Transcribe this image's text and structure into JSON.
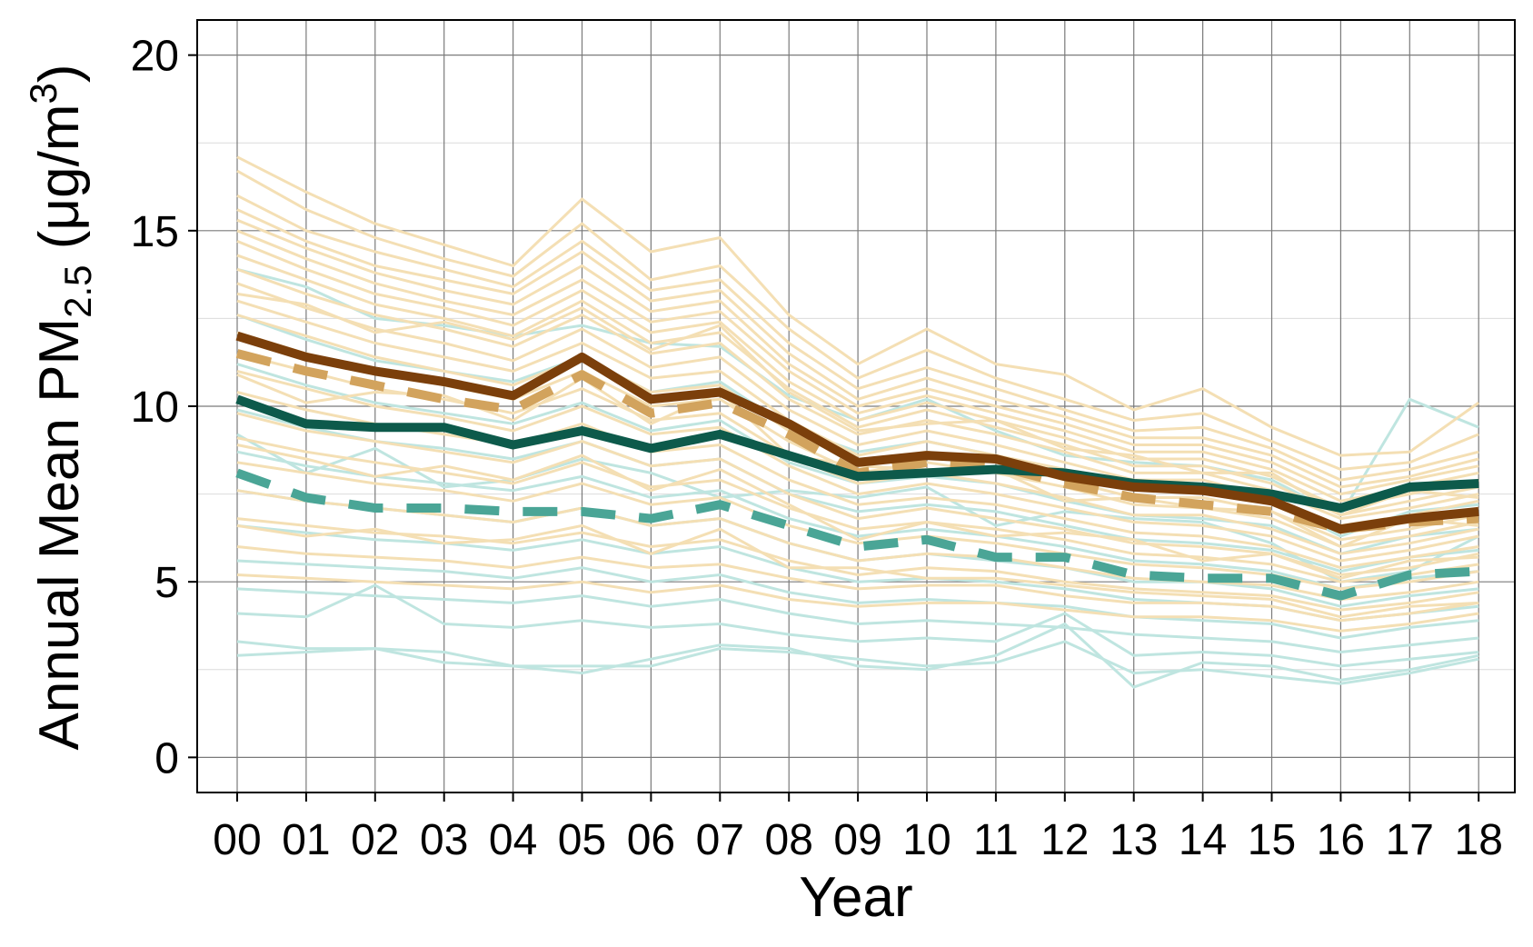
{
  "chart_data": {
    "type": "line",
    "xlabel": "Year",
    "ylabel": {
      "prefix": "Annual Mean PM",
      "subscript": "2.5",
      "unit_open": " (μg/m",
      "superscript": "3",
      "unit_close": ")"
    },
    "categories": [
      "00",
      "01",
      "02",
      "03",
      "04",
      "05",
      "06",
      "07",
      "08",
      "09",
      "10",
      "11",
      "12",
      "13",
      "14",
      "15",
      "16",
      "17",
      "18"
    ],
    "ylim": [
      -1,
      21
    ],
    "yticks": [
      0,
      5,
      10,
      15,
      20
    ],
    "grid": true,
    "legend": "none",
    "colors": {
      "brown_solid": "#7b3f0b",
      "tan_dashed": "#d2a35d",
      "teal_solid": "#0d5a4b",
      "teal_dashed": "#4aa596",
      "thin_tan": "#f4dfb4",
      "thin_cyan": "#bfe5e0"
    },
    "series": [
      {
        "style": "brown_solid",
        "values": [
          12.0,
          11.4,
          11.0,
          10.7,
          10.3,
          11.4,
          10.2,
          10.4,
          9.5,
          8.4,
          8.6,
          8.5,
          8.0,
          7.7,
          7.6,
          7.3,
          6.5,
          6.8,
          7.0
        ]
      },
      {
        "style": "tan_dashed",
        "values": [
          11.5,
          11.0,
          10.6,
          10.2,
          9.9,
          10.9,
          9.8,
          10.1,
          9.2,
          8.1,
          8.4,
          8.3,
          7.8,
          7.4,
          7.2,
          7.0,
          6.5,
          6.7,
          6.8
        ]
      },
      {
        "style": "teal_solid",
        "values": [
          10.2,
          9.5,
          9.4,
          9.4,
          8.9,
          9.3,
          8.8,
          9.2,
          8.6,
          8.0,
          8.1,
          8.2,
          8.1,
          7.8,
          7.7,
          7.5,
          7.1,
          7.7,
          7.8
        ]
      },
      {
        "style": "teal_dashed",
        "values": [
          8.1,
          7.4,
          7.1,
          7.1,
          7.0,
          7.0,
          6.8,
          7.2,
          6.6,
          6.0,
          6.2,
          5.7,
          5.7,
          5.2,
          5.1,
          5.1,
          4.6,
          5.2,
          5.3
        ]
      }
    ],
    "background_series": {
      "tan": [
        [
          17.1,
          16.1,
          15.2,
          14.6,
          14.0,
          15.9,
          14.4,
          14.8,
          12.6,
          11.2,
          12.2,
          11.2,
          10.9,
          9.9,
          10.5,
          9.4,
          8.6,
          8.7,
          10.1
        ],
        [
          16.7,
          15.6,
          14.8,
          14.2,
          13.7,
          15.2,
          13.6,
          14.0,
          12.2,
          10.8,
          11.6,
          10.8,
          10.2,
          9.6,
          9.8,
          9.0,
          8.2,
          8.4,
          9.2
        ],
        [
          16.0,
          15.0,
          14.4,
          13.9,
          13.4,
          14.7,
          13.3,
          13.6,
          11.8,
          10.5,
          11.1,
          10.5,
          9.9,
          9.3,
          9.4,
          8.8,
          7.9,
          8.2,
          8.7
        ],
        [
          15.6,
          14.7,
          14.0,
          13.6,
          13.2,
          14.4,
          13.0,
          13.3,
          11.5,
          10.2,
          10.8,
          10.2,
          9.7,
          9.1,
          9.1,
          8.6,
          7.7,
          8.0,
          8.5
        ],
        [
          15.3,
          14.5,
          13.8,
          13.3,
          12.9,
          14.0,
          12.7,
          13.0,
          11.2,
          10.0,
          10.5,
          10.0,
          9.5,
          8.9,
          8.9,
          8.4,
          7.5,
          7.9,
          8.3
        ],
        [
          15.0,
          14.2,
          13.5,
          13.0,
          12.6,
          13.6,
          12.4,
          12.7,
          11.0,
          9.8,
          10.3,
          9.8,
          9.3,
          8.7,
          8.7,
          8.2,
          7.3,
          7.7,
          8.1
        ],
        [
          14.7,
          13.9,
          13.2,
          12.8,
          12.3,
          13.3,
          12.1,
          12.4,
          10.7,
          9.6,
          10.1,
          9.6,
          9.1,
          8.5,
          8.5,
          8.0,
          7.1,
          7.5,
          7.9
        ],
        [
          14.3,
          13.6,
          12.9,
          12.5,
          12.0,
          13.0,
          11.8,
          12.1,
          10.5,
          9.4,
          9.9,
          9.4,
          8.9,
          8.3,
          8.3,
          7.8,
          6.9,
          7.3,
          7.7
        ],
        [
          13.9,
          13.2,
          12.6,
          12.2,
          11.7,
          12.6,
          11.5,
          11.8,
          10.2,
          9.2,
          9.6,
          9.2,
          8.7,
          8.1,
          8.1,
          7.6,
          6.8,
          7.1,
          7.5
        ],
        [
          13.5,
          12.8,
          12.2,
          11.8,
          11.3,
          12.2,
          11.1,
          11.4,
          9.9,
          8.9,
          9.3,
          8.9,
          8.4,
          7.9,
          7.9,
          7.4,
          6.6,
          6.9,
          7.3
        ],
        [
          13.0,
          12.4,
          11.8,
          11.4,
          11.0,
          11.8,
          10.8,
          11.0,
          9.6,
          8.6,
          9.0,
          8.6,
          8.2,
          7.7,
          7.6,
          7.2,
          6.4,
          6.7,
          7.1
        ],
        [
          12.6,
          12.0,
          11.4,
          11.0,
          10.6,
          11.4,
          10.4,
          10.6,
          9.3,
          8.4,
          8.7,
          8.4,
          7.9,
          7.4,
          7.4,
          7.0,
          6.2,
          6.5,
          6.9
        ],
        [
          12.1,
          11.5,
          11.0,
          10.6,
          10.2,
          11.0,
          10.0,
          10.2,
          9.0,
          8.1,
          8.4,
          8.1,
          7.7,
          7.2,
          7.1,
          6.8,
          6.0,
          6.3,
          6.7
        ],
        [
          11.5,
          11.0,
          10.5,
          10.2,
          9.8,
          10.5,
          9.6,
          9.8,
          8.6,
          7.8,
          8.1,
          7.8,
          7.4,
          6.9,
          6.9,
          6.5,
          5.8,
          6.1,
          6.5
        ],
        [
          11.0,
          10.5,
          10.0,
          9.7,
          9.3,
          10.0,
          9.2,
          9.4,
          8.3,
          7.5,
          7.8,
          7.5,
          7.1,
          6.7,
          6.6,
          6.3,
          5.6,
          5.9,
          6.3
        ],
        [
          10.4,
          9.9,
          9.5,
          9.2,
          8.9,
          9.5,
          8.7,
          8.9,
          7.9,
          7.2,
          7.4,
          7.2,
          6.8,
          6.4,
          6.3,
          6.0,
          5.4,
          5.7,
          6.0
        ],
        [
          9.8,
          9.3,
          9.0,
          8.7,
          8.4,
          9.0,
          8.3,
          8.5,
          7.5,
          6.8,
          7.1,
          6.8,
          6.5,
          6.1,
          6.0,
          5.8,
          5.2,
          5.4,
          5.8
        ],
        [
          9.1,
          8.7,
          8.4,
          8.1,
          7.8,
          8.4,
          7.7,
          7.9,
          7.1,
          6.5,
          6.7,
          6.5,
          6.2,
          5.8,
          5.7,
          5.5,
          5.0,
          5.2,
          5.5
        ],
        [
          8.4,
          8.1,
          7.8,
          7.6,
          7.3,
          7.8,
          7.2,
          7.4,
          6.6,
          6.1,
          6.3,
          6.1,
          5.8,
          5.5,
          5.4,
          5.2,
          4.8,
          5.0,
          5.3
        ],
        [
          7.6,
          7.3,
          7.1,
          6.9,
          6.7,
          7.1,
          6.6,
          6.8,
          6.1,
          5.6,
          5.8,
          5.7,
          5.4,
          5.1,
          5.0,
          4.9,
          4.5,
          4.7,
          5.0
        ],
        [
          6.8,
          6.6,
          6.4,
          6.3,
          6.1,
          6.4,
          6.0,
          6.2,
          5.6,
          5.2,
          5.4,
          5.3,
          5.0,
          4.8,
          4.7,
          4.6,
          4.2,
          4.4,
          4.7
        ],
        [
          6.0,
          5.8,
          5.7,
          5.6,
          5.4,
          5.7,
          5.4,
          5.5,
          5.1,
          4.8,
          4.9,
          4.9,
          4.6,
          4.4,
          4.4,
          4.3,
          3.9,
          4.1,
          4.4
        ],
        [
          5.2,
          5.1,
          5.0,
          4.9,
          4.8,
          5.0,
          4.7,
          4.9,
          4.5,
          4.3,
          4.4,
          4.4,
          4.2,
          4.0,
          4.0,
          3.9,
          3.6,
          3.8,
          4.1
        ],
        [
          13.2,
          12.9,
          12.1,
          12.4,
          11.9,
          12.8,
          11.6,
          12.3,
          10.4,
          9.3,
          9.5,
          9.6,
          8.8,
          8.6,
          8.1,
          8.1,
          6.9,
          7.6,
          7.4
        ],
        [
          10.9,
          10.1,
          10.4,
          10.3,
          9.6,
          10.8,
          9.5,
          10.4,
          8.6,
          8.3,
          8.2,
          8.2,
          7.3,
          7.4,
          7.1,
          7.0,
          6.0,
          6.8,
          6.6
        ],
        [
          8.9,
          8.5,
          8.0,
          8.3,
          7.9,
          8.6,
          7.6,
          8.2,
          7.2,
          6.2,
          6.7,
          6.3,
          6.4,
          6.2,
          5.6,
          5.8,
          5.1,
          5.6,
          5.7
        ],
        [
          6.6,
          6.3,
          6.5,
          6.1,
          6.2,
          6.6,
          5.8,
          6.5,
          5.4,
          5.4,
          5.1,
          5.1,
          4.9,
          4.7,
          4.6,
          4.5,
          4.0,
          4.3,
          4.4
        ]
      ],
      "cyan": [
        [
          13.9,
          13.4,
          12.5,
          12.3,
          12.0,
          12.3,
          11.8,
          11.7,
          10.3,
          9.6,
          10.2,
          9.3,
          8.6,
          8.4,
          8.3,
          7.9,
          6.9,
          10.2,
          9.4
        ],
        [
          12.6,
          11.9,
          11.3,
          11.0,
          10.7,
          11.4,
          10.4,
          10.7,
          9.4,
          8.7,
          9.0,
          8.6,
          8.0,
          7.7,
          7.6,
          7.3,
          6.3,
          7.0,
          7.2
        ],
        [
          11.2,
          10.6,
          10.1,
          9.8,
          9.5,
          10.1,
          9.3,
          9.6,
          8.4,
          7.8,
          8.0,
          7.8,
          7.3,
          6.9,
          6.8,
          6.6,
          5.8,
          6.3,
          6.5
        ],
        [
          9.9,
          9.4,
          9.0,
          8.8,
          8.5,
          9.0,
          8.3,
          8.5,
          7.5,
          7.0,
          7.2,
          7.0,
          6.6,
          6.2,
          6.1,
          5.9,
          5.3,
          5.7,
          5.9
        ],
        [
          8.7,
          8.3,
          8.0,
          7.8,
          7.6,
          8.0,
          7.4,
          7.6,
          6.8,
          6.3,
          6.5,
          6.3,
          6.0,
          5.6,
          5.5,
          5.3,
          4.8,
          5.1,
          5.3
        ],
        [
          7.6,
          7.3,
          7.1,
          6.9,
          6.7,
          7.1,
          6.6,
          6.8,
          6.1,
          5.6,
          5.8,
          5.6,
          5.4,
          5.0,
          5.0,
          4.8,
          4.3,
          4.6,
          4.8
        ],
        [
          6.6,
          6.4,
          6.2,
          6.1,
          5.9,
          6.2,
          5.8,
          6.0,
          5.4,
          5.0,
          5.1,
          5.0,
          4.8,
          4.5,
          4.4,
          4.3,
          3.9,
          4.1,
          4.3
        ],
        [
          5.6,
          5.5,
          5.4,
          5.3,
          5.1,
          5.4,
          5.0,
          5.2,
          4.7,
          4.4,
          4.5,
          4.4,
          4.3,
          4.0,
          3.9,
          3.8,
          3.4,
          3.7,
          3.9
        ],
        [
          4.8,
          4.7,
          4.6,
          4.5,
          4.4,
          4.6,
          4.3,
          4.5,
          4.1,
          3.8,
          3.9,
          3.8,
          3.7,
          3.5,
          3.4,
          3.3,
          3.0,
          3.2,
          3.4
        ],
        [
          4.1,
          4.0,
          4.9,
          3.8,
          3.7,
          3.9,
          3.7,
          3.8,
          3.5,
          3.3,
          3.4,
          3.3,
          4.1,
          2.9,
          3.0,
          2.9,
          2.6,
          2.8,
          3.0
        ],
        [
          3.3,
          3.1,
          3.1,
          2.7,
          2.6,
          2.4,
          2.8,
          3.2,
          3.1,
          2.6,
          2.5,
          2.9,
          3.8,
          2.0,
          2.7,
          2.6,
          2.2,
          2.5,
          2.9
        ],
        [
          2.9,
          3.0,
          3.1,
          3.0,
          2.6,
          2.6,
          2.6,
          3.1,
          3.0,
          2.8,
          2.6,
          2.7,
          3.3,
          2.4,
          2.5,
          2.3,
          2.1,
          2.4,
          2.8
        ],
        [
          9.2,
          8.1,
          8.8,
          7.7,
          7.9,
          8.5,
          8.1,
          7.4,
          7.6,
          7.4,
          7.7,
          6.6,
          7.0,
          6.8,
          6.7,
          6.1,
          5.0,
          5.3,
          6.3
        ]
      ]
    }
  }
}
